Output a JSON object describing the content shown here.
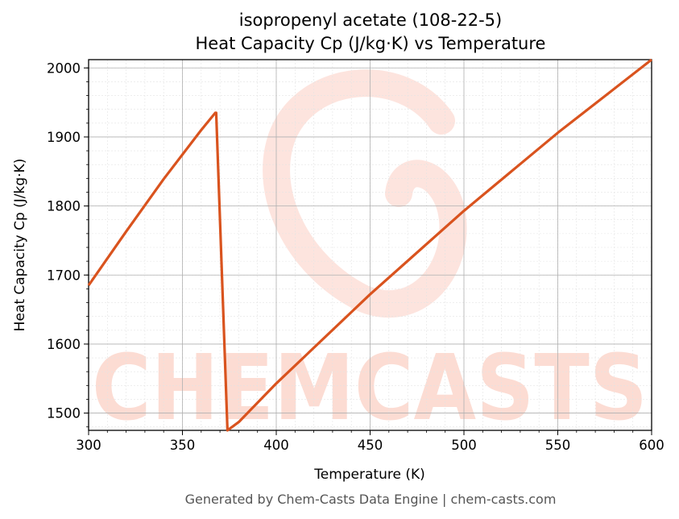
{
  "chart_data": {
    "type": "line",
    "title": "isopropenyl acetate (108-22-5)",
    "subtitle": "Heat Capacity Cp (J/kg·K) vs Temperature",
    "xlabel": "Temperature (K)",
    "ylabel": "Heat Capacity Cp (J/kg·K)",
    "xlim": [
      300,
      600
    ],
    "ylim": [
      1475,
      2012
    ],
    "xticks": [
      300,
      350,
      400,
      450,
      500,
      550,
      600
    ],
    "yticks": [
      1500,
      1600,
      1700,
      1800,
      1900,
      2000
    ],
    "grid": true,
    "series": [
      {
        "color": "#d9531e",
        "x": [
          300,
          320,
          340,
          360,
          367.5,
          368,
          374,
          380,
          400,
          450,
          500,
          550,
          600
        ],
        "y": [
          1685,
          1763,
          1839,
          1910,
          1935,
          1935,
          1475,
          1487,
          1543,
          1672,
          1793,
          1906,
          2012
        ]
      }
    ]
  },
  "watermark": "CHEMCASTS",
  "footer": "Generated by Chem-Casts Data Engine | chem-casts.com"
}
